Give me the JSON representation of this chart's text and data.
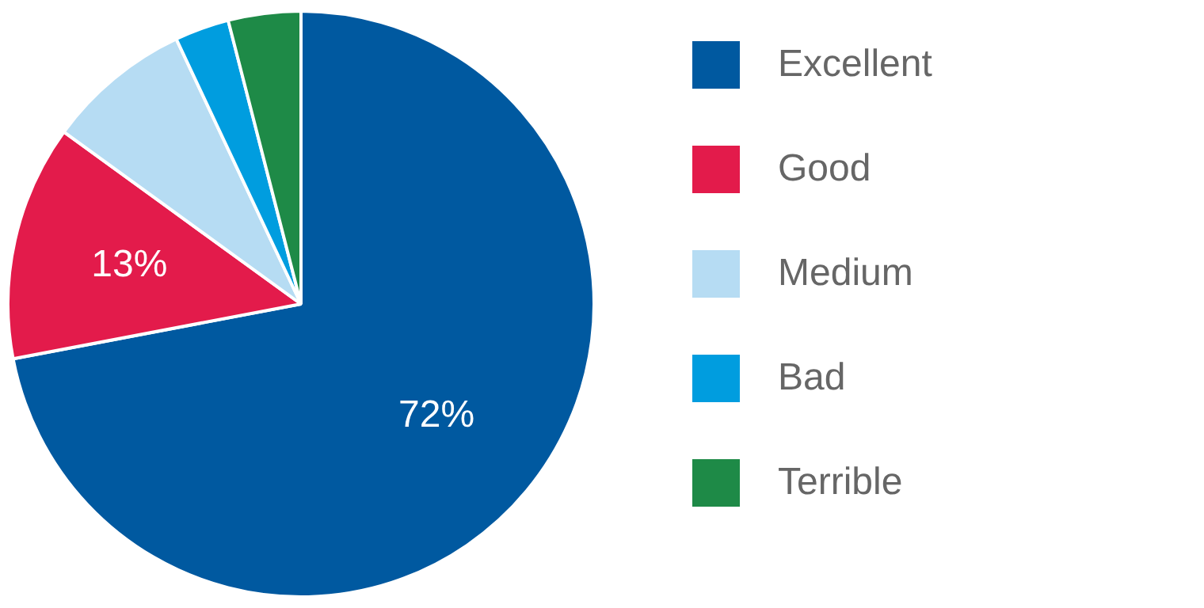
{
  "chart_data": {
    "type": "pie",
    "categories": [
      "Excellent",
      "Good",
      "Medium",
      "Bad",
      "Terrible"
    ],
    "values": [
      72,
      13,
      8,
      3,
      4
    ],
    "colors": [
      "#0059a0",
      "#e31b4b",
      "#b6dcf3",
      "#009ddf",
      "#1e8a47"
    ],
    "value_labels": [
      "72%",
      "13%",
      null,
      null,
      null
    ],
    "legend": "right"
  }
}
